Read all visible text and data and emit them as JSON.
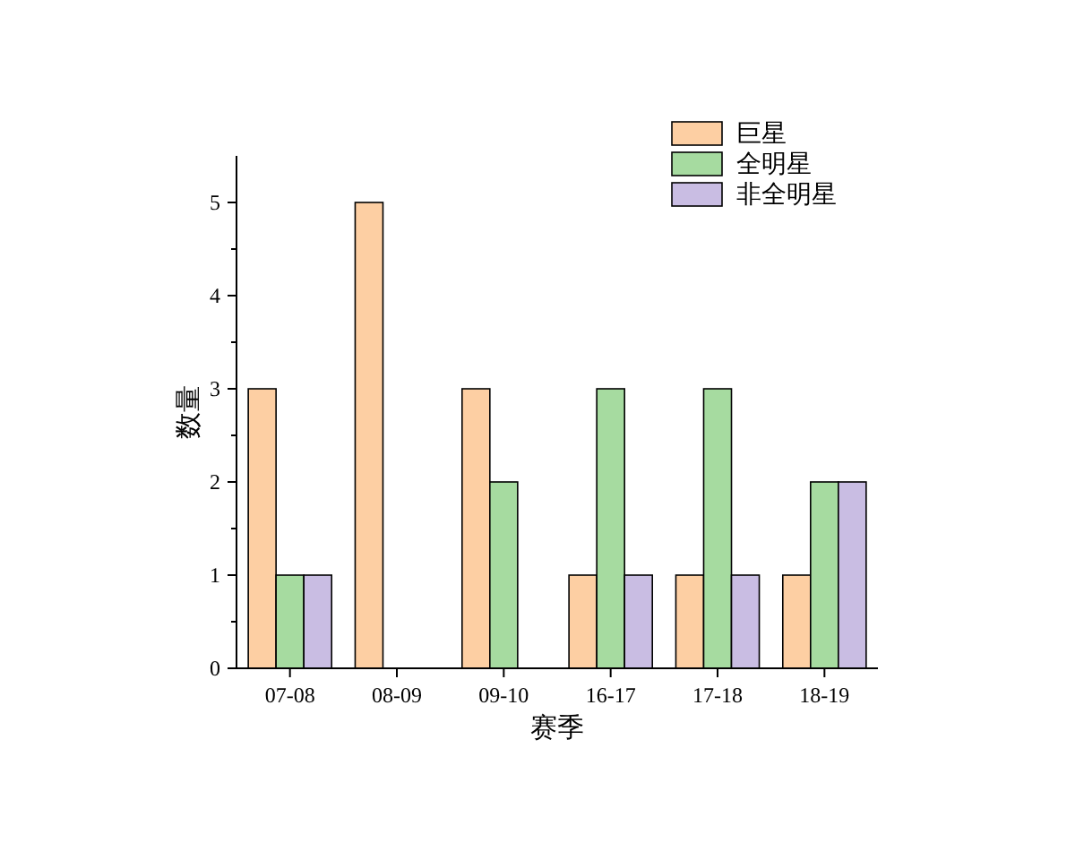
{
  "chart_data": {
    "type": "bar",
    "xlabel": "赛季",
    "ylabel": "数量",
    "categories": [
      "07-08",
      "08-09",
      "09-10",
      "16-17",
      "17-18",
      "18-19"
    ],
    "series": [
      {
        "name": "巨星",
        "color": "#fdcfa3",
        "values": [
          3,
          5,
          3,
          1,
          1,
          1
        ]
      },
      {
        "name": "全明星",
        "color": "#a6dba0",
        "values": [
          1,
          0,
          2,
          3,
          3,
          2
        ]
      },
      {
        "name": "非全明星",
        "color": "#c9bde3",
        "values": [
          1,
          0,
          0,
          1,
          1,
          2
        ]
      }
    ],
    "ylim": [
      0,
      5.5
    ],
    "yticks": [
      0,
      1,
      2,
      3,
      4,
      5
    ],
    "grid": false,
    "legend": "top right"
  }
}
